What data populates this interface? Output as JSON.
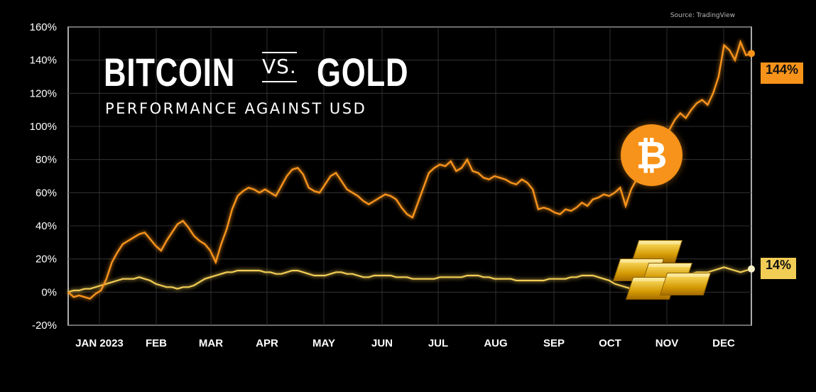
{
  "source": "Source: TradingView",
  "title": {
    "left": "BITCOIN",
    "middle": "VS.",
    "right": "GOLD",
    "subtitle": "PERFORMANCE AGAINST USD"
  },
  "badges": {
    "bitcoin": "144%",
    "gold": "14%"
  },
  "colors": {
    "bitcoin": "#f7931a",
    "gold": "#f2cd55",
    "background": "#000000",
    "grid": "#3a3a3a"
  },
  "icons": {
    "bitcoin": "bitcoin-icon",
    "gold": "gold-bars-icon"
  },
  "chart_data": {
    "type": "line",
    "title": "BITCOIN VS. GOLD",
    "subtitle": "PERFORMANCE AGAINST USD",
    "x_labels": [
      "JAN 2023",
      "FEB",
      "MAR",
      "APR",
      "MAY",
      "JUN",
      "JUL",
      "AUG",
      "SEP",
      "OCT",
      "NOV",
      "DEC"
    ],
    "y_ticks": [
      "-20%",
      "0%",
      "20%",
      "40%",
      "60%",
      "80%",
      "100%",
      "120%",
      "140%",
      "160%"
    ],
    "ylim": [
      -20,
      160
    ],
    "grid": true,
    "series": [
      {
        "name": "Bitcoin",
        "values": [
          0,
          -3,
          -2,
          -3,
          -4,
          -1,
          1,
          8,
          18,
          24,
          29,
          31,
          33,
          35,
          36,
          32,
          28,
          25,
          31,
          36,
          41,
          43,
          39,
          34,
          31,
          29,
          25,
          18,
          29,
          38,
          50,
          58,
          61,
          63,
          62,
          60,
          62,
          60,
          58,
          64,
          70,
          74,
          75,
          71,
          63,
          61,
          60,
          65,
          70,
          72,
          67,
          62,
          60,
          58,
          55,
          53,
          55,
          57,
          59,
          58,
          56,
          51,
          47,
          45,
          54,
          63,
          72,
          75,
          77,
          76,
          79,
          73,
          75,
          80,
          73,
          72,
          69,
          68,
          70,
          69,
          68,
          66,
          65,
          68,
          66,
          62,
          50,
          51,
          50,
          48,
          47,
          50,
          49,
          51,
          54,
          52,
          56,
          57,
          59,
          58,
          60,
          63,
          52,
          62,
          68,
          71,
          82,
          85,
          88,
          94,
          98,
          104,
          108,
          105,
          110,
          114,
          116,
          113,
          120,
          130,
          149,
          146,
          140,
          151,
          143,
          144
        ],
        "color": "#f7931a"
      },
      {
        "name": "Gold",
        "values": [
          0,
          1,
          1,
          2,
          2,
          3,
          4,
          5,
          6,
          7,
          8,
          8,
          8,
          9,
          8,
          7,
          5,
          4,
          3,
          3,
          2,
          3,
          3,
          4,
          6,
          8,
          9,
          10,
          11,
          12,
          12,
          13,
          13,
          13,
          13,
          13,
          12,
          12,
          11,
          11,
          12,
          13,
          13,
          12,
          11,
          10,
          10,
          10,
          11,
          12,
          12,
          11,
          11,
          10,
          9,
          9,
          10,
          10,
          10,
          10,
          9,
          9,
          9,
          8,
          8,
          8,
          8,
          8,
          9,
          9,
          9,
          9,
          9,
          10,
          10,
          10,
          9,
          9,
          8,
          8,
          8,
          8,
          7,
          7,
          7,
          7,
          7,
          7,
          8,
          8,
          8,
          8,
          9,
          9,
          10,
          10,
          10,
          9,
          8,
          7,
          5,
          4,
          3,
          2,
          4,
          6,
          8,
          9,
          9,
          9,
          10,
          10,
          11,
          11,
          11,
          12,
          12,
          12,
          13,
          14,
          15,
          14,
          13,
          12,
          13,
          14
        ],
        "color": "#f2cd55"
      }
    ]
  }
}
